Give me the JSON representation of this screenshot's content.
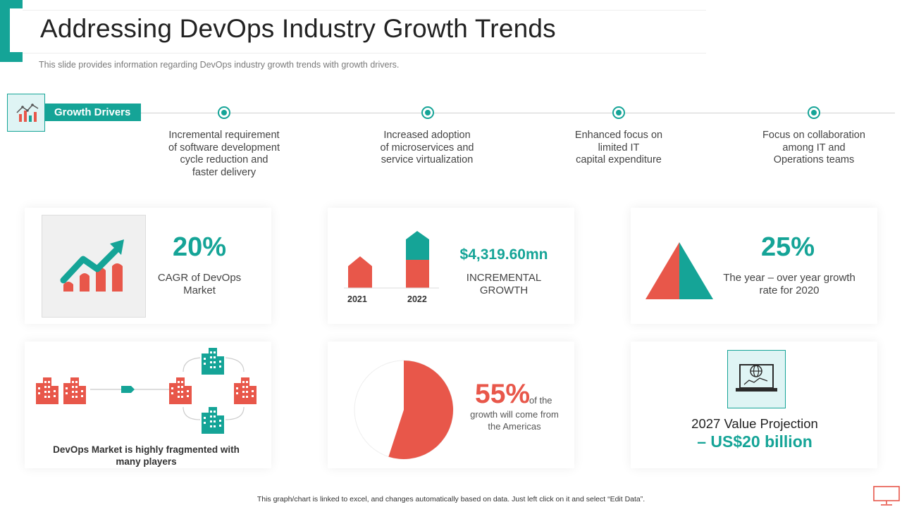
{
  "header": {
    "title": "Addressing DevOps Industry Growth Trends",
    "subtitle": "This slide provides  information  regarding  DevOps  industry growth  trends with growth drivers."
  },
  "growth_drivers": {
    "label": "Growth Drivers",
    "icon": "growth-chart-icon",
    "items": [
      {
        "lines": [
          "Incremental requirement",
          "of software development",
          "cycle reduction and",
          "faster delivery"
        ]
      },
      {
        "lines": [
          "Increased adoption",
          "of microservices and",
          "service virtualization"
        ]
      },
      {
        "lines": [
          "Enhanced focus on",
          "limited IT",
          "capital expenditure"
        ]
      },
      {
        "lines": [
          "Focus on collaboration",
          "among IT  and",
          "Operations teams"
        ]
      }
    ]
  },
  "stats": {
    "cagr": {
      "value": "20%",
      "line1": "CAGR of DevOps",
      "line2": "Market"
    },
    "incremental": {
      "value": "$4,319.60mn",
      "line1": "INCREMENTAL",
      "line2": "GROWTH",
      "year_a": "2021",
      "year_b": "2022"
    },
    "yoy": {
      "value": "25%",
      "line1": "The year – over year growth",
      "line2": "rate for 2020"
    },
    "fragmented": {
      "line1": "DevOps Market is highly fragmented with",
      "line2": "many players"
    },
    "americas": {
      "value": "55%",
      "suffix": "of the",
      "line1": "growth  will  come from",
      "line2": "the Americas",
      "share": 0.55
    },
    "projection": {
      "label": "2027 Value Projection",
      "value": "– US$20 billion"
    }
  },
  "footer": {
    "text": "This graph/chart is linked to excel, and changes automatically based on data. Just left click on it and select “Edit Data”."
  },
  "colors": {
    "teal": "#15a497",
    "coral": "#e8574a",
    "light_teal": "#dff4f4"
  }
}
